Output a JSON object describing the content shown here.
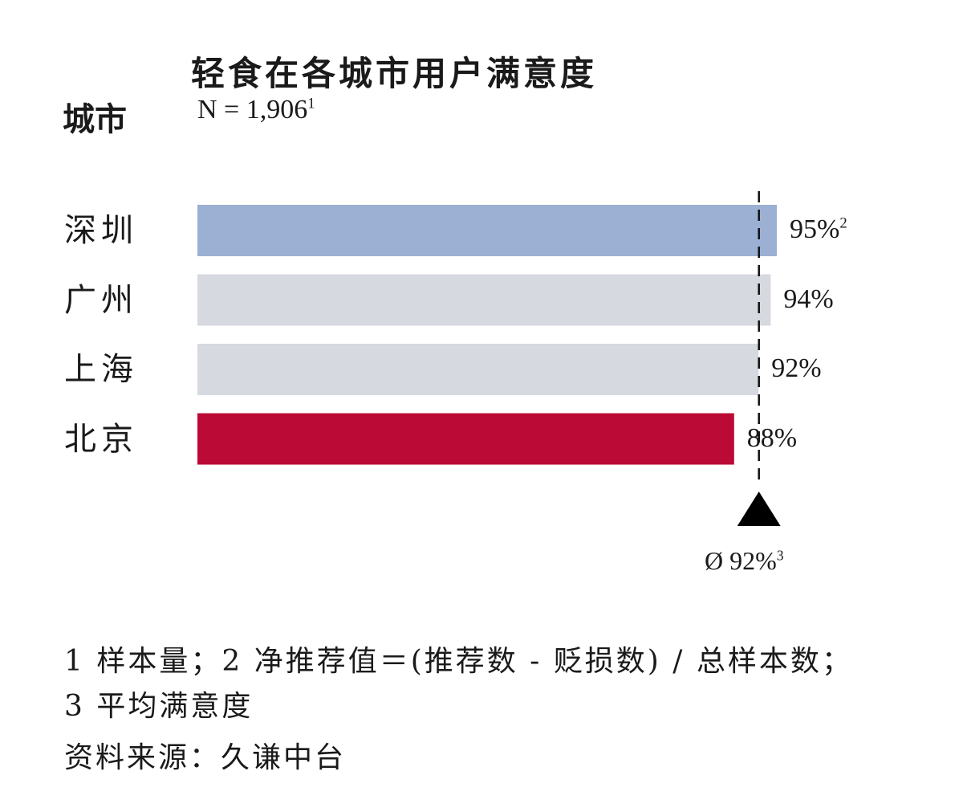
{
  "chart_data": {
    "type": "bar",
    "orientation": "horizontal",
    "title": "轻食在各城市用户满意度",
    "axis_label": "城市",
    "sample_size": "N = 1,906",
    "sample_size_note": "1",
    "categories": [
      "深圳",
      "广州",
      "上海",
      "北京"
    ],
    "values": [
      95,
      94,
      92,
      88
    ],
    "value_labels": [
      "95%",
      "94%",
      "92%",
      "88%"
    ],
    "value_notes": [
      "2",
      "",
      "",
      ""
    ],
    "average": 92,
    "average_label": "Ø 92%",
    "average_note": "3",
    "bar_colors": [
      "#9bb0d3",
      "#d6d9df",
      "#d6d9df",
      "#bb0a35"
    ],
    "xlim": [
      0,
      100
    ]
  },
  "footnotes": {
    "line1": "1 样本量；2 净推荐值＝(推荐数 - 贬损数) / 总样本数；",
    "line2": "3 平均满意度",
    "source": "资料来源：久谦中台"
  }
}
